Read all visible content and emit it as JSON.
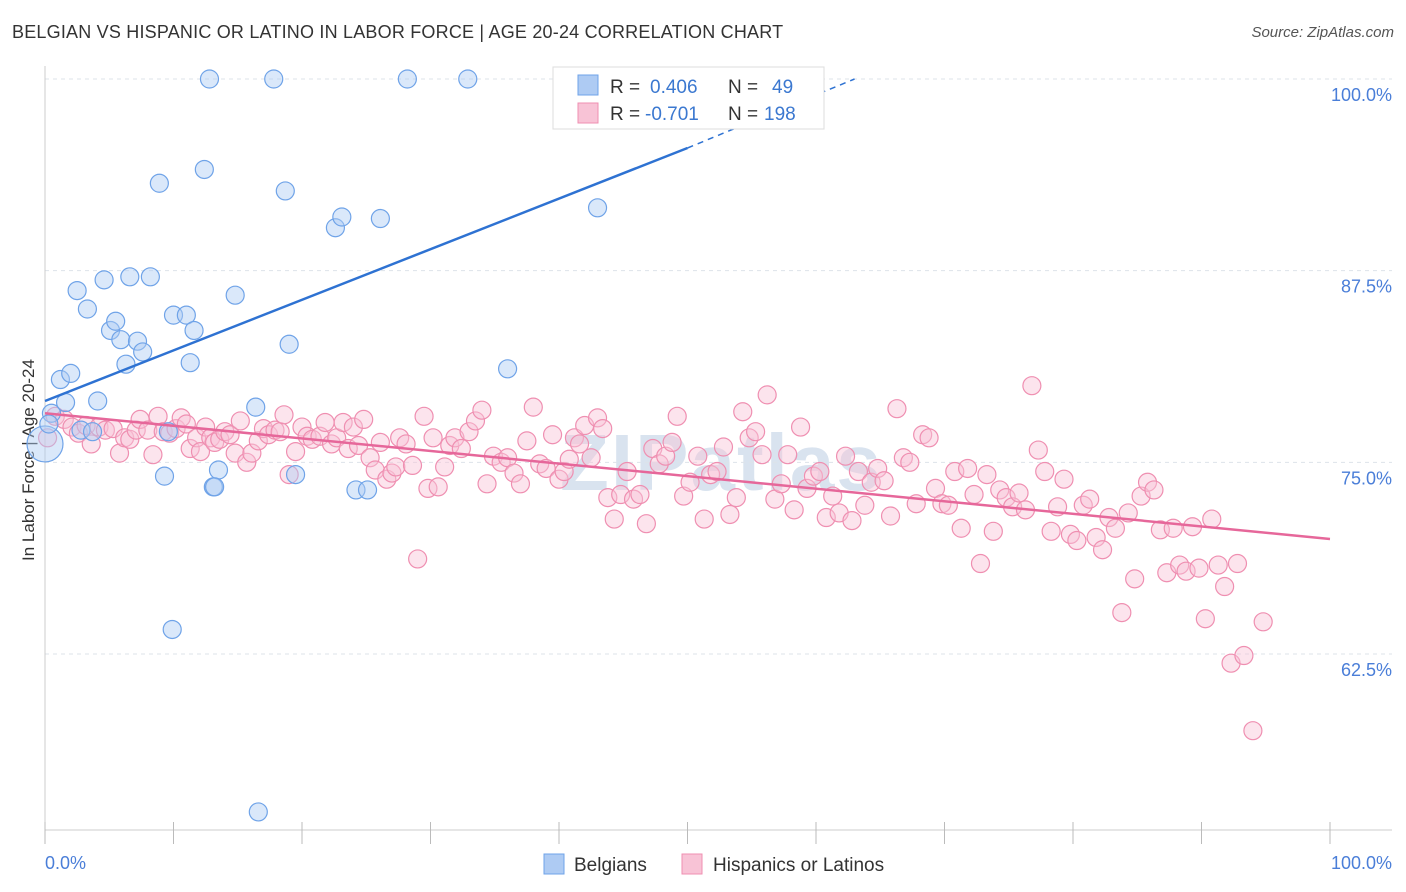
{
  "title": "BELGIAN VS HISPANIC OR LATINO IN LABOR FORCE | AGE 20-24 CORRELATION CHART",
  "source": "Source: ZipAtlas.com",
  "watermark": "ZIPatlas",
  "colors": {
    "blue": "#6fa3e8",
    "blue_line": "#2e72d2",
    "pink": "#ef8fb1",
    "pink_line": "#e6679a",
    "tick": "#4a7ed8"
  },
  "legend": {
    "rows": [
      {
        "r_label": "R =",
        "r_value": "0.406",
        "n_label": "N =",
        "n_value": "49"
      },
      {
        "r_label": "R =",
        "r_value": "-0.701",
        "n_label": "N =",
        "n_value": "198"
      }
    ]
  },
  "chart_data": {
    "type": "scatter",
    "xlabel": "",
    "ylabel": "In Labor Force | Age 20-24",
    "xlim": [
      0,
      100
    ],
    "ylim": [
      52,
      101
    ],
    "x_tick_labels": [
      "0.0%",
      "100.0%"
    ],
    "y_ticks": [
      {
        "value": 100,
        "label": "100.0%"
      },
      {
        "value": 87.5,
        "label": "87.5%"
      },
      {
        "value": 75,
        "label": "75.0%"
      },
      {
        "value": 62.5,
        "label": "62.5%"
      }
    ],
    "grid": true,
    "legend_position": "top-center",
    "series": [
      {
        "name": "Belgians",
        "color": "#6fa3e8",
        "trend": {
          "x0": 0,
          "y0": 79.0,
          "x1": 50,
          "y1": 95.5,
          "dash_to_x": 63,
          "dash_to_y": 100
        },
        "points": [
          [
            0,
            76.2
          ],
          [
            0.5,
            78.2
          ],
          [
            1.2,
            80.4
          ],
          [
            1.6,
            78.9
          ],
          [
            2.0,
            80.8
          ],
          [
            2.5,
            86.2
          ],
          [
            2.8,
            77.1
          ],
          [
            3.3,
            85.0
          ],
          [
            3.7,
            77.0
          ],
          [
            4.1,
            79.0
          ],
          [
            4.6,
            86.9
          ],
          [
            5.1,
            83.6
          ],
          [
            5.5,
            84.2
          ],
          [
            5.9,
            83.0
          ],
          [
            6.3,
            81.4
          ],
          [
            6.6,
            87.1
          ],
          [
            7.2,
            82.9
          ],
          [
            7.6,
            82.2
          ],
          [
            8.2,
            87.1
          ],
          [
            8.9,
            93.2
          ],
          [
            9.3,
            74.1
          ],
          [
            9.6,
            77.0
          ],
          [
            10.0,
            84.6
          ],
          [
            11.0,
            84.6
          ],
          [
            11.3,
            81.5
          ],
          [
            11.6,
            83.6
          ],
          [
            12.4,
            94.1
          ],
          [
            12.8,
            100.0
          ],
          [
            13.1,
            73.4
          ],
          [
            13.5,
            74.5
          ],
          [
            14.8,
            85.9
          ],
          [
            16.4,
            78.6
          ],
          [
            17.8,
            100.0
          ],
          [
            18.7,
            92.7
          ],
          [
            19.0,
            82.7
          ],
          [
            19.5,
            74.2
          ],
          [
            22.6,
            90.3
          ],
          [
            23.1,
            91.0
          ],
          [
            24.2,
            73.2
          ],
          [
            25.1,
            73.2
          ],
          [
            26.1,
            90.9
          ],
          [
            28.2,
            100.0
          ],
          [
            32.9,
            100.0
          ],
          [
            36.0,
            81.1
          ],
          [
            43.0,
            91.6
          ],
          [
            9.9,
            64.1
          ],
          [
            16.6,
            52.2
          ],
          [
            13.2,
            73.4
          ],
          [
            0.3,
            77.5
          ]
        ]
      },
      {
        "name": "Hispanics or Latinos",
        "color": "#ef8fb1",
        "trend": {
          "x0": 0,
          "y0": 78.2,
          "x1": 100,
          "y1": 70.0
        },
        "points": [
          [
            0.2,
            76.6
          ],
          [
            0.8,
            78.0
          ],
          [
            1.5,
            77.8
          ],
          [
            2.1,
            77.3
          ],
          [
            2.6,
            76.9
          ],
          [
            3.2,
            77.4
          ],
          [
            3.6,
            76.2
          ],
          [
            4.2,
            77.3
          ],
          [
            4.7,
            77.1
          ],
          [
            5.3,
            77.2
          ],
          [
            5.8,
            75.6
          ],
          [
            6.2,
            76.6
          ],
          [
            6.6,
            76.5
          ],
          [
            7.1,
            77.1
          ],
          [
            7.4,
            77.8
          ],
          [
            8.0,
            77.1
          ],
          [
            8.4,
            75.5
          ],
          [
            8.8,
            78.0
          ],
          [
            9.2,
            77.0
          ],
          [
            9.7,
            76.9
          ],
          [
            10.2,
            77.2
          ],
          [
            10.6,
            77.9
          ],
          [
            11.0,
            77.5
          ],
          [
            11.3,
            75.9
          ],
          [
            11.8,
            76.6
          ],
          [
            12.1,
            75.7
          ],
          [
            12.5,
            77.3
          ],
          [
            12.9,
            76.6
          ],
          [
            13.2,
            76.3
          ],
          [
            13.6,
            76.5
          ],
          [
            14.0,
            77.0
          ],
          [
            14.4,
            76.8
          ],
          [
            14.8,
            75.6
          ],
          [
            15.2,
            77.7
          ],
          [
            15.7,
            75.0
          ],
          [
            16.1,
            75.6
          ],
          [
            16.6,
            76.4
          ],
          [
            17.0,
            77.2
          ],
          [
            17.4,
            76.8
          ],
          [
            17.9,
            77.1
          ],
          [
            18.3,
            77.0
          ],
          [
            18.6,
            78.1
          ],
          [
            19.0,
            74.2
          ],
          [
            19.5,
            75.7
          ],
          [
            20.0,
            77.3
          ],
          [
            20.4,
            76.7
          ],
          [
            20.8,
            76.5
          ],
          [
            21.4,
            76.7
          ],
          [
            21.8,
            77.6
          ],
          [
            22.3,
            76.2
          ],
          [
            22.7,
            76.6
          ],
          [
            23.2,
            77.6
          ],
          [
            23.6,
            75.9
          ],
          [
            24.0,
            77.3
          ],
          [
            24.4,
            76.1
          ],
          [
            24.8,
            77.8
          ],
          [
            25.3,
            75.3
          ],
          [
            25.7,
            74.5
          ],
          [
            26.1,
            76.3
          ],
          [
            26.6,
            73.9
          ],
          [
            27.0,
            74.3
          ],
          [
            27.3,
            74.7
          ],
          [
            27.6,
            76.6
          ],
          [
            28.1,
            76.2
          ],
          [
            28.6,
            74.8
          ],
          [
            29.0,
            68.7
          ],
          [
            29.5,
            78.0
          ],
          [
            29.8,
            73.3
          ],
          [
            30.2,
            76.6
          ],
          [
            30.6,
            73.4
          ],
          [
            31.1,
            74.7
          ],
          [
            31.5,
            76.1
          ],
          [
            31.9,
            76.6
          ],
          [
            32.4,
            75.9
          ],
          [
            33.0,
            77.0
          ],
          [
            33.5,
            77.7
          ],
          [
            34.0,
            78.4
          ],
          [
            34.4,
            73.6
          ],
          [
            34.9,
            75.4
          ],
          [
            35.5,
            75.0
          ],
          [
            36.0,
            75.3
          ],
          [
            36.5,
            74.3
          ],
          [
            37.0,
            73.6
          ],
          [
            37.5,
            76.4
          ],
          [
            38.0,
            78.6
          ],
          [
            38.5,
            74.9
          ],
          [
            39.0,
            74.6
          ],
          [
            39.5,
            76.8
          ],
          [
            40.0,
            73.9
          ],
          [
            40.4,
            74.4
          ],
          [
            40.8,
            75.2
          ],
          [
            41.2,
            76.6
          ],
          [
            41.6,
            76.2
          ],
          [
            42.0,
            77.4
          ],
          [
            42.5,
            75.3
          ],
          [
            43.0,
            77.9
          ],
          [
            43.4,
            77.2
          ],
          [
            43.8,
            72.7
          ],
          [
            44.3,
            71.3
          ],
          [
            44.8,
            72.9
          ],
          [
            45.3,
            74.4
          ],
          [
            45.8,
            72.6
          ],
          [
            46.3,
            72.9
          ],
          [
            46.8,
            71.0
          ],
          [
            47.3,
            75.9
          ],
          [
            47.8,
            74.9
          ],
          [
            48.3,
            75.4
          ],
          [
            48.8,
            76.3
          ],
          [
            49.2,
            78.0
          ],
          [
            49.7,
            72.8
          ],
          [
            50.2,
            73.7
          ],
          [
            50.8,
            75.4
          ],
          [
            51.3,
            71.3
          ],
          [
            51.8,
            74.2
          ],
          [
            52.3,
            74.4
          ],
          [
            52.8,
            76.0
          ],
          [
            53.3,
            71.6
          ],
          [
            53.8,
            72.7
          ],
          [
            54.3,
            78.3
          ],
          [
            54.8,
            76.6
          ],
          [
            55.3,
            77.0
          ],
          [
            55.8,
            75.5
          ],
          [
            56.2,
            79.4
          ],
          [
            56.8,
            72.6
          ],
          [
            57.3,
            73.6
          ],
          [
            57.8,
            75.5
          ],
          [
            58.3,
            71.9
          ],
          [
            58.8,
            77.3
          ],
          [
            59.3,
            73.3
          ],
          [
            59.8,
            74.1
          ],
          [
            60.3,
            74.4
          ],
          [
            60.8,
            71.4
          ],
          [
            61.3,
            72.8
          ],
          [
            61.8,
            71.7
          ],
          [
            62.3,
            75.4
          ],
          [
            62.8,
            71.2
          ],
          [
            63.3,
            74.4
          ],
          [
            63.8,
            72.2
          ],
          [
            64.3,
            73.7
          ],
          [
            64.8,
            74.6
          ],
          [
            65.3,
            73.8
          ],
          [
            65.8,
            71.5
          ],
          [
            66.3,
            78.5
          ],
          [
            66.8,
            75.3
          ],
          [
            67.3,
            75.0
          ],
          [
            67.8,
            72.3
          ],
          [
            68.3,
            76.8
          ],
          [
            68.8,
            76.6
          ],
          [
            69.3,
            73.3
          ],
          [
            69.8,
            72.3
          ],
          [
            70.3,
            72.2
          ],
          [
            70.8,
            74.4
          ],
          [
            71.3,
            70.7
          ],
          [
            71.8,
            74.6
          ],
          [
            72.3,
            72.9
          ],
          [
            72.8,
            68.4
          ],
          [
            73.3,
            74.2
          ],
          [
            73.8,
            70.5
          ],
          [
            74.3,
            73.2
          ],
          [
            74.8,
            72.7
          ],
          [
            75.3,
            72.1
          ],
          [
            75.8,
            73.0
          ],
          [
            76.3,
            71.9
          ],
          [
            76.8,
            80.0
          ],
          [
            77.3,
            75.8
          ],
          [
            77.8,
            74.4
          ],
          [
            78.3,
            70.5
          ],
          [
            78.8,
            72.1
          ],
          [
            79.3,
            73.9
          ],
          [
            79.8,
            70.3
          ],
          [
            80.3,
            69.9
          ],
          [
            80.8,
            72.2
          ],
          [
            81.3,
            72.6
          ],
          [
            81.8,
            70.1
          ],
          [
            82.3,
            69.3
          ],
          [
            82.8,
            71.4
          ],
          [
            83.3,
            70.7
          ],
          [
            83.8,
            65.2
          ],
          [
            84.3,
            71.7
          ],
          [
            84.8,
            67.4
          ],
          [
            85.3,
            72.8
          ],
          [
            85.8,
            73.7
          ],
          [
            86.3,
            73.2
          ],
          [
            86.8,
            70.6
          ],
          [
            87.3,
            67.8
          ],
          [
            87.8,
            70.7
          ],
          [
            88.3,
            68.3
          ],
          [
            88.8,
            67.9
          ],
          [
            89.3,
            70.8
          ],
          [
            89.8,
            68.1
          ],
          [
            90.3,
            64.8
          ],
          [
            90.8,
            71.3
          ],
          [
            91.3,
            68.3
          ],
          [
            91.8,
            66.9
          ],
          [
            92.3,
            61.9
          ],
          [
            92.8,
            68.4
          ],
          [
            93.3,
            62.4
          ],
          [
            94.8,
            64.6
          ],
          [
            94.0,
            57.5
          ]
        ]
      }
    ]
  },
  "bottom_legend": [
    "Belgians",
    "Hispanics or Latinos"
  ]
}
